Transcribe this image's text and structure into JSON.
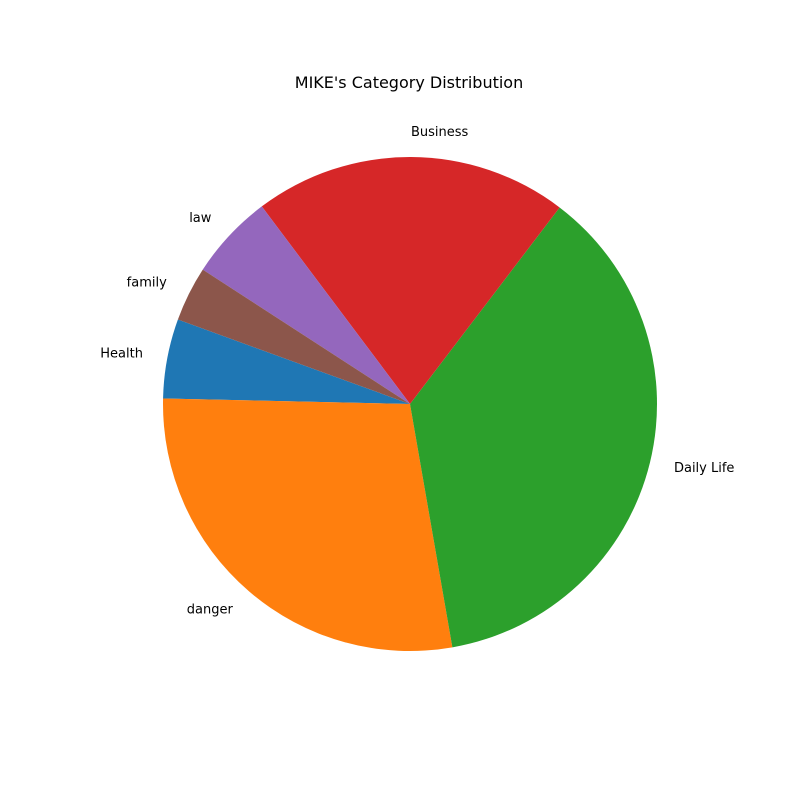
{
  "chart_data": {
    "type": "pie",
    "title": "MIKE's Category Distribution",
    "categories": [
      "Health",
      "danger",
      "Daily Life",
      "Business",
      "law",
      "family"
    ],
    "values": [
      5.2,
      28.1,
      36.9,
      20.6,
      5.6,
      3.6
    ],
    "colors": [
      "#1f77b4",
      "#ff7f0e",
      "#2ca02c",
      "#d62728",
      "#9467bd",
      "#8c564b"
    ],
    "start_angle_deg": 160,
    "direction": "counterclockwise",
    "legend": "none"
  }
}
